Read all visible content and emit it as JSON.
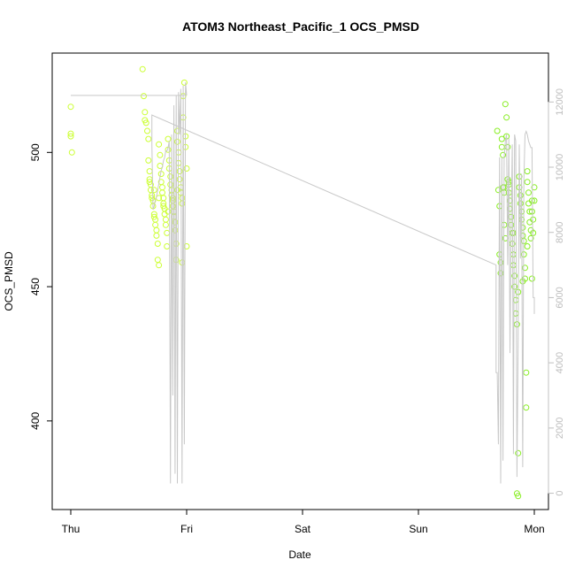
{
  "chart_data": {
    "type": "scatter",
    "title": "ATOM3 Northeast_Pacific_1 OCS_PMSD",
    "xlabel": "Date",
    "ylabel": "OCS_PMSD",
    "y2label": "",
    "x_ticks": [
      "Thu",
      "Fri",
      "Sat",
      "Sun",
      "Mon"
    ],
    "x_range_days": [
      -0.18,
      4.12
    ],
    "ylim": [
      367,
      537
    ],
    "y_ticks": [
      400,
      450,
      500
    ],
    "y2lim": [
      -500,
      13500
    ],
    "y2_ticks": [
      0,
      2000,
      4000,
      6000,
      8000,
      10000,
      12000
    ],
    "grid": false,
    "legend": "none",
    "colors": {
      "points_early": "#ccff33",
      "points_late": "#88ee22",
      "altitude_line": "#c8c8c8",
      "axis": "#000000",
      "right_axis": "#c0c0c0"
    },
    "series": [
      {
        "axis": "left",
        "kind": "points",
        "color": "#ccff33",
        "x": [
          0.0,
          0.0,
          0.0,
          0.01,
          0.62,
          0.63,
          0.64,
          0.64,
          0.65,
          0.66,
          0.67,
          0.67,
          0.68,
          0.68,
          0.69,
          0.69,
          0.7,
          0.7,
          0.71,
          0.71,
          0.72,
          0.72,
          0.73,
          0.73,
          0.74,
          0.74,
          0.75,
          0.75,
          0.76,
          0.76,
          0.77,
          0.77,
          0.78,
          0.78,
          0.79,
          0.79,
          0.8,
          0.8,
          0.81,
          0.81,
          0.82,
          0.82,
          0.83,
          0.83,
          0.84,
          0.84,
          0.85,
          0.85,
          0.86,
          0.86,
          0.87,
          0.87,
          0.88,
          0.88,
          0.89,
          0.89,
          0.9,
          0.9,
          0.91,
          0.91,
          0.92,
          0.92,
          0.93,
          0.93,
          0.94,
          0.94,
          0.95,
          0.95,
          0.96,
          0.96,
          0.97,
          0.97,
          0.98,
          0.98,
          0.99,
          0.99,
          1.0,
          1.0,
          0.68,
          0.72,
          0.76,
          0.8,
          0.84,
          0.88,
          0.92,
          0.96
        ],
        "y": [
          517,
          507,
          506,
          500,
          531,
          521,
          515,
          512,
          511,
          508,
          505,
          497,
          493,
          490,
          488,
          486,
          484,
          483,
          482,
          480,
          477,
          476,
          475,
          473,
          471,
          469,
          466,
          460,
          458,
          503,
          499,
          495,
          492,
          489,
          487,
          485,
          483,
          481,
          479,
          477,
          475,
          473,
          470,
          465,
          505,
          501,
          497,
          494,
          491,
          488,
          486,
          484,
          482,
          480,
          478,
          476,
          474,
          471,
          466,
          460,
          508,
          504,
          500,
          496,
          493,
          490,
          487,
          485,
          483,
          481,
          513,
          521,
          538,
          526,
          506,
          502,
          494,
          465,
          489,
          486,
          483,
          480,
          478,
          483,
          486,
          459
        ],
        "values_are_estimates": true
      },
      {
        "axis": "left",
        "kind": "points",
        "color": "#88ee22",
        "x": [
          3.68,
          3.69,
          3.7,
          3.7,
          3.71,
          3.71,
          3.72,
          3.72,
          3.73,
          3.73,
          3.74,
          3.74,
          3.75,
          3.75,
          3.76,
          3.76,
          3.77,
          3.77,
          3.78,
          3.78,
          3.79,
          3.79,
          3.8,
          3.8,
          3.81,
          3.81,
          3.82,
          3.82,
          3.83,
          3.83,
          3.84,
          3.84,
          3.85,
          3.85,
          3.86,
          3.86,
          3.87,
          3.87,
          3.88,
          3.88,
          3.89,
          3.89,
          3.9,
          3.9,
          3.91,
          3.91,
          3.92,
          3.92,
          3.93,
          3.93,
          3.94,
          3.94,
          3.95,
          3.95,
          3.96,
          3.96,
          3.97,
          3.97,
          3.98,
          3.98,
          3.99,
          3.99,
          4.0,
          4.0,
          3.74,
          3.78,
          3.82,
          3.86,
          3.9,
          3.94,
          3.98
        ],
        "y": [
          508,
          486,
          480,
          462,
          459,
          455,
          505,
          502,
          499,
          487,
          485,
          473,
          468,
          518,
          513,
          506,
          502,
          490,
          488,
          485,
          482,
          479,
          476,
          473,
          470,
          466,
          462,
          458,
          454,
          450,
          445,
          440,
          436,
          373,
          372,
          388,
          491,
          487,
          484,
          481,
          478,
          475,
          472,
          469,
          467,
          462,
          457,
          453,
          418,
          405,
          493,
          489,
          485,
          481,
          478,
          474,
          471,
          468,
          482,
          478,
          475,
          470,
          487,
          482,
          487,
          489,
          470,
          448,
          452,
          465,
          453
        ],
        "values_are_estimates": true
      },
      {
        "axis": "right",
        "kind": "line",
        "color": "#c8c8c8",
        "x": [
          0.0,
          0.99,
          0.99,
          1.0,
          0.99,
          0.98,
          0.97,
          0.96,
          0.95,
          0.94,
          0.93,
          0.92,
          0.91,
          0.9,
          0.89,
          0.88,
          0.87,
          0.86,
          0.85,
          0.84,
          0.83,
          0.82,
          0.81,
          0.8,
          0.79,
          0.78,
          0.77,
          0.76,
          0.75,
          0.74,
          0.73,
          0.72,
          0.71,
          0.7,
          0.7,
          3.67,
          3.67,
          3.68,
          3.69,
          3.7,
          3.71,
          3.72,
          3.73,
          3.74,
          3.75,
          3.76,
          3.77,
          3.78,
          3.79,
          3.8,
          3.81,
          3.82,
          3.83,
          3.84,
          3.85,
          3.86,
          3.87,
          3.88,
          3.89,
          3.9,
          3.91,
          3.92,
          3.93,
          3.94,
          3.95,
          3.96,
          3.97,
          3.98,
          3.99,
          4.0,
          4.0
        ],
        "y": [
          12200,
          12200,
          12500,
          12200,
          12600,
          1500,
          12500,
          300,
          12400,
          11000,
          12300,
          300,
          12200,
          600,
          11900,
          3000,
          11000,
          300,
          10800,
          10600,
          10500,
          10500,
          10300,
          10200,
          10000,
          9900,
          9700,
          9500,
          9300,
          9100,
          9000,
          8800,
          8700,
          10700,
          11600,
          7000,
          3700,
          3700,
          1500,
          10300,
          300,
          10300,
          1000,
          10300,
          10800,
          11000,
          7000,
          10900,
          4300,
          8200,
          10700,
          1200,
          11000,
          10800,
          500,
          4600,
          10700,
          7200,
          9800,
          800,
          9600,
          11000,
          11100,
          11000,
          10800,
          10700,
          10600,
          10600,
          6000,
          6000,
          5500
        ],
        "values_are_estimates": true
      }
    ]
  }
}
